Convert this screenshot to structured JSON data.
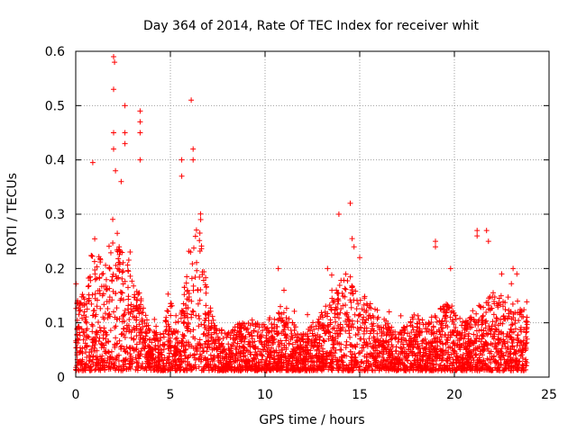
{
  "chart_data": {
    "type": "scatter",
    "title": "Day 364 of 2014, Rate Of TEC Index for receiver whit",
    "xlabel": "GPS time / hours",
    "ylabel": "ROTI / TECUs",
    "xlim": [
      0,
      25
    ],
    "ylim": [
      0,
      0.6
    ],
    "x_ticks": [
      0,
      5,
      10,
      15,
      20,
      25
    ],
    "y_ticks": [
      0,
      0.1,
      0.2,
      0.3,
      0.4,
      0.5,
      0.6
    ],
    "x_tick_labels": [
      "0",
      "5",
      "10",
      "15",
      "20",
      "25"
    ],
    "y_tick_labels": [
      "0",
      "0.1",
      "0.2",
      "0.3",
      "0.4",
      "0.5",
      "0.6"
    ],
    "grid": true,
    "marker": "+",
    "color": "#ff0000",
    "time_span_hours": [
      0,
      23.85
    ],
    "background_profile": {
      "x": [
        0,
        0.5,
        1,
        1.5,
        2,
        2.5,
        3,
        3.5,
        4,
        4.5,
        5,
        5.5,
        6,
        6.5,
        7,
        7.5,
        8,
        8.5,
        9,
        9.5,
        10,
        10.5,
        11,
        11.5,
        12,
        12.5,
        13,
        13.5,
        14,
        14.5,
        15,
        15.5,
        16,
        16.5,
        17,
        17.5,
        18,
        18.5,
        19,
        19.5,
        20,
        20.5,
        21,
        21.5,
        22,
        22.5,
        23,
        23.5,
        23.85
      ],
      "upper_envelope": [
        0.14,
        0.16,
        0.26,
        0.2,
        0.3,
        0.24,
        0.2,
        0.14,
        0.08,
        0.1,
        0.14,
        0.1,
        0.24,
        0.3,
        0.14,
        0.09,
        0.08,
        0.1,
        0.1,
        0.1,
        0.1,
        0.12,
        0.12,
        0.1,
        0.08,
        0.1,
        0.12,
        0.16,
        0.18,
        0.2,
        0.16,
        0.14,
        0.12,
        0.1,
        0.08,
        0.1,
        0.12,
        0.1,
        0.12,
        0.14,
        0.12,
        0.1,
        0.12,
        0.14,
        0.16,
        0.14,
        0.14,
        0.14,
        0.12
      ]
    },
    "notable_points": [
      {
        "x": 2.0,
        "y": 0.59
      },
      {
        "x": 2.05,
        "y": 0.58
      },
      {
        "x": 2.0,
        "y": 0.53
      },
      {
        "x": 2.6,
        "y": 0.5
      },
      {
        "x": 2.6,
        "y": 0.45
      },
      {
        "x": 2.6,
        "y": 0.43
      },
      {
        "x": 3.4,
        "y": 0.49
      },
      {
        "x": 3.4,
        "y": 0.47
      },
      {
        "x": 3.4,
        "y": 0.45
      },
      {
        "x": 3.4,
        "y": 0.4
      },
      {
        "x": 0.9,
        "y": 0.395
      },
      {
        "x": 2.0,
        "y": 0.45
      },
      {
        "x": 2.0,
        "y": 0.42
      },
      {
        "x": 2.1,
        "y": 0.38
      },
      {
        "x": 2.4,
        "y": 0.36
      },
      {
        "x": 5.6,
        "y": 0.4
      },
      {
        "x": 5.6,
        "y": 0.37
      },
      {
        "x": 6.1,
        "y": 0.51
      },
      {
        "x": 6.2,
        "y": 0.42
      },
      {
        "x": 6.2,
        "y": 0.4
      },
      {
        "x": 6.6,
        "y": 0.29
      },
      {
        "x": 10.7,
        "y": 0.2
      },
      {
        "x": 11.0,
        "y": 0.16
      },
      {
        "x": 13.3,
        "y": 0.2
      },
      {
        "x": 13.9,
        "y": 0.3
      },
      {
        "x": 14.5,
        "y": 0.32
      },
      {
        "x": 14.6,
        "y": 0.255
      },
      {
        "x": 14.7,
        "y": 0.24
      },
      {
        "x": 15.0,
        "y": 0.22
      },
      {
        "x": 19.0,
        "y": 0.25
      },
      {
        "x": 19.0,
        "y": 0.24
      },
      {
        "x": 19.8,
        "y": 0.2
      },
      {
        "x": 21.2,
        "y": 0.27
      },
      {
        "x": 21.2,
        "y": 0.26
      },
      {
        "x": 21.7,
        "y": 0.27
      },
      {
        "x": 21.8,
        "y": 0.25
      },
      {
        "x": 22.5,
        "y": 0.19
      },
      {
        "x": 23.1,
        "y": 0.2
      },
      {
        "x": 23.3,
        "y": 0.19
      }
    ]
  }
}
